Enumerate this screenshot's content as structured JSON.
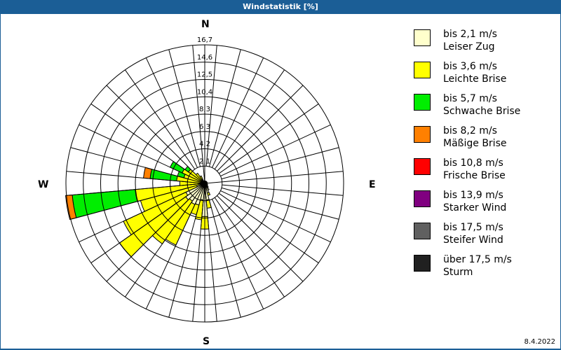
{
  "header": {
    "title": "Windstatistik [%]"
  },
  "compass": {
    "n": "N",
    "e": "E",
    "s": "S",
    "w": "W"
  },
  "footer": {
    "date": "8.4.2022"
  },
  "legend": [
    {
      "range": "bis 2,1 m/s",
      "name": "Leiser Zug",
      "color": "#ffffcc"
    },
    {
      "range": "bis 3,6 m/s",
      "name": "Leichte Brise",
      "color": "#ffff00"
    },
    {
      "range": "bis 5,7 m/s",
      "name": "Schwache Brise",
      "color": "#00ee00"
    },
    {
      "range": "bis 8,2 m/s",
      "name": "Mäßige Brise",
      "color": "#ff8000"
    },
    {
      "range": "bis 10,8 m/s",
      "name": "Frische Brise",
      "color": "#ff0000"
    },
    {
      "range": "bis 13,9 m/s",
      "name": "Starker Wind",
      "color": "#800080"
    },
    {
      "range": "bis 17,5 m/s",
      "name": "Steifer Wind",
      "color": "#606060"
    },
    {
      "range": "über 17,5 m/s",
      "name": "Sturm",
      "color": "#202020"
    }
  ],
  "chart_data": {
    "type": "wind-rose",
    "title": "Windstatistik [%]",
    "unit": "%",
    "radial_ticks": [
      "2,1",
      "4,2",
      "6,3",
      "8,3",
      "10,4",
      "12,5",
      "14,6",
      "16,7"
    ],
    "radial_max": 16.7,
    "sector_width_deg": 10,
    "series_names": [
      "Leiser Zug",
      "Leichte Brise",
      "Schwache Brise",
      "Mäßige Brise",
      "Frische Brise",
      "Starker Wind",
      "Steifer Wind",
      "Sturm"
    ],
    "sectors": [
      {
        "dir": 0,
        "values": [
          0.3,
          0,
          0,
          0
        ]
      },
      {
        "dir": 10,
        "values": [
          0.3,
          0,
          0,
          0
        ]
      },
      {
        "dir": 20,
        "values": [
          0.3,
          0,
          0,
          0
        ]
      },
      {
        "dir": 30,
        "values": [
          0.3,
          0,
          0,
          0
        ]
      },
      {
        "dir": 40,
        "values": [
          0.3,
          0,
          0,
          0
        ]
      },
      {
        "dir": 50,
        "values": [
          0.3,
          0,
          0,
          0
        ]
      },
      {
        "dir": 60,
        "values": [
          0.3,
          0,
          0,
          0
        ]
      },
      {
        "dir": 70,
        "values": [
          0.3,
          0,
          0,
          0
        ]
      },
      {
        "dir": 80,
        "values": [
          0.3,
          0,
          0,
          0
        ]
      },
      {
        "dir": 90,
        "values": [
          0.3,
          0,
          0,
          0
        ]
      },
      {
        "dir": 100,
        "values": [
          0.3,
          0,
          0,
          0
        ]
      },
      {
        "dir": 110,
        "values": [
          0.3,
          0,
          0,
          0
        ]
      },
      {
        "dir": 120,
        "values": [
          0.4,
          0,
          0,
          0
        ]
      },
      {
        "dir": 130,
        "values": [
          0.4,
          0,
          0,
          0
        ]
      },
      {
        "dir": 140,
        "values": [
          0.6,
          0,
          0,
          0
        ]
      },
      {
        "dir": 150,
        "values": [
          0.9,
          0,
          0,
          0
        ]
      },
      {
        "dir": 160,
        "values": [
          1.2,
          0.3,
          0,
          0
        ]
      },
      {
        "dir": 170,
        "values": [
          2.0,
          1.0,
          0,
          0
        ]
      },
      {
        "dir": 180,
        "values": [
          4.0,
          1.5,
          0,
          0
        ]
      },
      {
        "dir": 190,
        "values": [
          2.0,
          2.4,
          0,
          0
        ]
      },
      {
        "dir": 200,
        "values": [
          2.7,
          1.2,
          0,
          0
        ]
      },
      {
        "dir": 210,
        "values": [
          2.8,
          5.4,
          0,
          0
        ]
      },
      {
        "dir": 220,
        "values": [
          2.6,
          6.3,
          0,
          0
        ]
      },
      {
        "dir": 230,
        "values": [
          2.8,
          9.7,
          0,
          0
        ]
      },
      {
        "dir": 240,
        "values": [
          2.5,
          8.3,
          0,
          0
        ]
      },
      {
        "dir": 250,
        "values": [
          1.0,
          7.0,
          0,
          0
        ]
      },
      {
        "dir": 260,
        "values": [
          0.5,
          7.9,
          7.6,
          0.8
        ]
      },
      {
        "dir": 270,
        "values": [
          0.3,
          2.7,
          0,
          0
        ]
      },
      {
        "dir": 280,
        "values": [
          0.4,
          3.0,
          3.2,
          0.8
        ]
      },
      {
        "dir": 290,
        "values": [
          0.3,
          2.3,
          0.8,
          0
        ]
      },
      {
        "dir": 300,
        "values": [
          0.3,
          2.7,
          1.6,
          0
        ]
      },
      {
        "dir": 310,
        "values": [
          0.3,
          2.1,
          0.5,
          0
        ]
      },
      {
        "dir": 320,
        "values": [
          0.3,
          1.2,
          0,
          0
        ]
      },
      {
        "dir": 330,
        "values": [
          0.3,
          0.7,
          0,
          0
        ]
      },
      {
        "dir": 340,
        "values": [
          0.3,
          0,
          0,
          0
        ]
      },
      {
        "dir": 350,
        "values": [
          0.3,
          0,
          0,
          0
        ]
      }
    ]
  }
}
